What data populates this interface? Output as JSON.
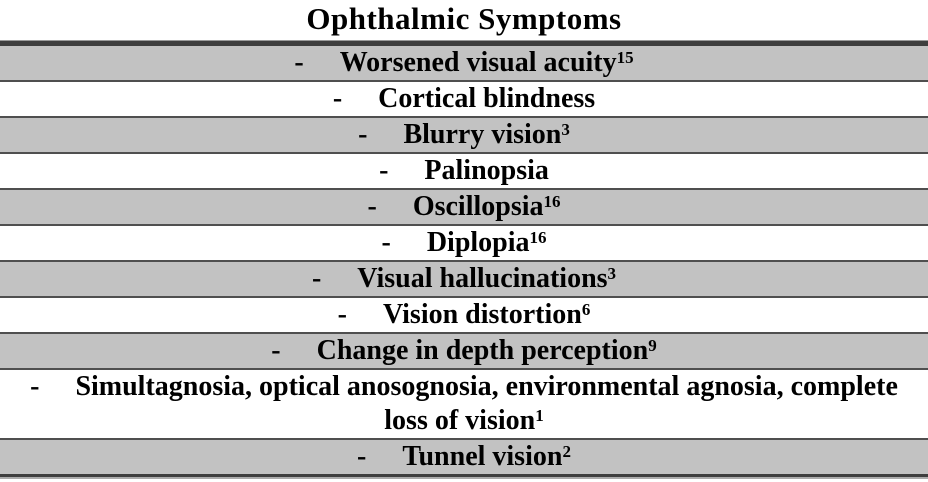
{
  "table": {
    "title": "Ophthalmic Symptoms",
    "bullet": "-",
    "rows": [
      {
        "lines": [
          "Worsened visual acuity"
        ],
        "sup": "15",
        "shaded": true
      },
      {
        "lines": [
          "Cortical blindness"
        ],
        "sup": "",
        "shaded": false
      },
      {
        "lines": [
          "Blurry vision"
        ],
        "sup": "3",
        "shaded": true
      },
      {
        "lines": [
          "Palinopsia"
        ],
        "sup": "",
        "shaded": false
      },
      {
        "lines": [
          "Oscillopsia"
        ],
        "sup": "16",
        "shaded": true
      },
      {
        "lines": [
          "Diplopia"
        ],
        "sup": "16",
        "shaded": false
      },
      {
        "lines": [
          "Visual hallucinations"
        ],
        "sup": "3",
        "shaded": true
      },
      {
        "lines": [
          "Vision distortion"
        ],
        "sup": "6",
        "shaded": false
      },
      {
        "lines": [
          "Change in depth perception"
        ],
        "sup": "9",
        "shaded": true
      },
      {
        "lines": [
          "Simultagnosia, optical anosognosia, environmental agnosia, complete",
          "loss of vision"
        ],
        "sup": "1",
        "shaded": false
      },
      {
        "lines": [
          "Tunnel vision"
        ],
        "sup": "2",
        "shaded": true
      }
    ],
    "colors": {
      "shaded_row": "#c2c2c2",
      "row_border": "#4f4f4f",
      "heavy_border": "#3e3e3e",
      "text": "#000000",
      "background": "#ffffff"
    }
  }
}
